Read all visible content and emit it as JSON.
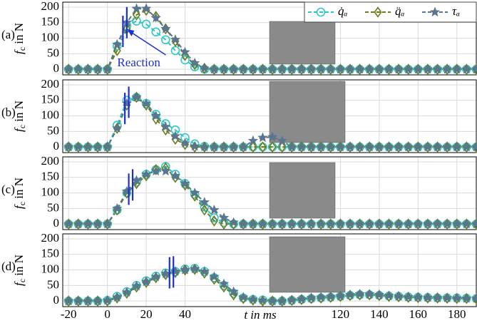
{
  "chart_data": [
    {
      "type": "line",
      "panel_label": "(a)",
      "ylabel": {
        "symbol": "f",
        "sub": "c",
        "text": " in N"
      },
      "annotation": "Reaction",
      "legend": "upper right",
      "grid": true,
      "xlim": [
        -23,
        190
      ],
      "ylim": [
        -18,
        216
      ],
      "yticks": [
        0,
        50,
        100,
        150,
        200
      ],
      "reaction": [
        8,
        10
      ],
      "x": [
        -20,
        -15,
        -10,
        -5,
        0,
        5,
        10,
        15,
        20,
        25,
        30,
        35,
        40,
        45,
        50,
        55,
        60,
        65,
        70,
        75,
        80,
        85,
        90,
        95,
        100,
        105,
        110,
        115,
        120,
        125,
        130,
        135,
        140,
        145,
        150,
        155,
        160,
        165,
        170,
        175,
        180,
        185,
        190
      ],
      "series": [
        {
          "name": "q̇ₐ",
          "color": "#2ec7c7",
          "marker": "circle",
          "values": [
            0,
            0,
            0,
            0,
            0,
            75,
            140,
            155,
            145,
            120,
            95,
            60,
            30,
            8,
            0,
            0,
            0,
            0,
            0,
            0,
            0,
            0,
            0,
            0,
            0,
            0,
            0,
            0,
            0,
            0,
            0,
            0,
            0,
            0,
            0,
            0,
            0,
            0,
            0,
            0,
            0,
            0,
            0
          ]
        },
        {
          "name": "q̈ₐ",
          "color": "#6b7d1a",
          "marker": "diamond",
          "values": [
            0,
            0,
            0,
            0,
            0,
            60,
            130,
            175,
            190,
            170,
            130,
            90,
            45,
            15,
            3,
            0,
            0,
            0,
            0,
            0,
            0,
            0,
            0,
            0,
            0,
            0,
            0,
            0,
            0,
            0,
            0,
            0,
            0,
            0,
            0,
            0,
            0,
            0,
            0,
            0,
            0,
            0,
            0
          ]
        },
        {
          "name": "τₐ",
          "color": "#5a7590",
          "marker": "star",
          "values": [
            0,
            0,
            0,
            0,
            0,
            80,
            150,
            195,
            195,
            165,
            130,
            95,
            55,
            20,
            3,
            0,
            0,
            0,
            0,
            0,
            0,
            0,
            0,
            0,
            0,
            0,
            0,
            0,
            0,
            0,
            0,
            0,
            0,
            0,
            0,
            0,
            0,
            0,
            0,
            0,
            0,
            0,
            0
          ]
        }
      ]
    },
    {
      "type": "line",
      "panel_label": "(b)",
      "ylabel": {
        "symbol": "f",
        "sub": "c",
        "text": " in N"
      },
      "grid": true,
      "xlim": [
        -23,
        190
      ],
      "ylim": [
        -18,
        216
      ],
      "yticks": [
        0,
        50,
        100,
        150,
        200
      ],
      "reaction": [
        9,
        11
      ],
      "x": [
        -20,
        -15,
        -10,
        -5,
        0,
        5,
        10,
        15,
        20,
        25,
        30,
        35,
        40,
        45,
        50,
        55,
        60,
        65,
        70,
        75,
        80,
        85,
        90,
        95,
        100,
        105,
        110,
        115,
        120,
        125,
        130,
        135,
        140,
        145,
        150,
        155,
        160,
        165,
        170,
        175,
        180,
        185,
        190
      ],
      "series": [
        {
          "color": "#2ec7c7",
          "marker": "circle",
          "values": [
            0,
            0,
            0,
            0,
            0,
            70,
            150,
            160,
            140,
            105,
            75,
            55,
            30,
            10,
            2,
            0,
            0,
            0,
            0,
            0,
            0,
            0,
            0,
            0,
            0,
            0,
            0,
            0,
            0,
            0,
            0,
            0,
            0,
            0,
            0,
            0,
            0,
            0,
            0,
            0,
            0,
            0,
            0
          ]
        },
        {
          "color": "#6b7d1a",
          "marker": "diamond",
          "values": [
            0,
            0,
            0,
            0,
            0,
            60,
            135,
            160,
            135,
            90,
            55,
            25,
            8,
            0,
            0,
            0,
            0,
            0,
            0,
            0,
            0,
            0,
            0,
            0,
            0,
            0,
            0,
            0,
            0,
            0,
            0,
            0,
            0,
            0,
            0,
            0,
            0,
            0,
            0,
            0,
            0,
            0,
            0
          ]
        },
        {
          "color": "#5a7590",
          "marker": "star",
          "values": [
            0,
            0,
            0,
            0,
            0,
            60,
            140,
            160,
            140,
            100,
            65,
            35,
            12,
            2,
            0,
            0,
            0,
            0,
            0,
            20,
            30,
            32,
            20,
            0,
            0,
            0,
            0,
            0,
            0,
            0,
            0,
            0,
            0,
            0,
            0,
            0,
            0,
            0,
            0,
            0,
            0,
            0,
            0
          ]
        }
      ]
    },
    {
      "type": "line",
      "panel_label": "(c)",
      "ylabel": {
        "symbol": "f",
        "sub": "c",
        "text": " in N"
      },
      "grid": true,
      "xlim": [
        -23,
        190
      ],
      "ylim": [
        -18,
        216
      ],
      "yticks": [
        0,
        50,
        100,
        150,
        200
      ],
      "reaction": [
        11,
        13
      ],
      "x": [
        -20,
        -15,
        -10,
        -5,
        0,
        5,
        10,
        15,
        20,
        25,
        30,
        35,
        40,
        45,
        50,
        55,
        60,
        65,
        70,
        75,
        80,
        85,
        90,
        95,
        100,
        105,
        110,
        115,
        120,
        125,
        130,
        135,
        140,
        145,
        150,
        155,
        160,
        165,
        170,
        175,
        180,
        185,
        190
      ],
      "series": [
        {
          "color": "#2ec7c7",
          "marker": "circle",
          "values": [
            0,
            0,
            0,
            0,
            0,
            45,
            100,
            135,
            160,
            175,
            185,
            160,
            130,
            95,
            55,
            20,
            5,
            0,
            0,
            0,
            0,
            0,
            0,
            0,
            0,
            0,
            0,
            0,
            0,
            0,
            0,
            0,
            0,
            0,
            0,
            0,
            0,
            0,
            0,
            0,
            0,
            0,
            0
          ]
        },
        {
          "color": "#6b7d1a",
          "marker": "diamond",
          "values": [
            0,
            0,
            0,
            0,
            0,
            45,
            100,
            130,
            155,
            175,
            180,
            150,
            125,
            90,
            45,
            10,
            0,
            0,
            0,
            0,
            0,
            0,
            0,
            0,
            0,
            0,
            0,
            0,
            0,
            0,
            0,
            0,
            0,
            0,
            0,
            0,
            0,
            0,
            0,
            0,
            0,
            0,
            0
          ]
        },
        {
          "color": "#5a7590",
          "marker": "star",
          "values": [
            0,
            0,
            0,
            0,
            0,
            50,
            105,
            140,
            160,
            170,
            170,
            155,
            130,
            100,
            70,
            45,
            20,
            5,
            0,
            0,
            0,
            0,
            0,
            0,
            0,
            0,
            0,
            0,
            0,
            0,
            0,
            0,
            0,
            0,
            0,
            0,
            0,
            0,
            0,
            0,
            0,
            0,
            0
          ]
        }
      ]
    },
    {
      "type": "line",
      "panel_label": "(d)",
      "ylabel": {
        "symbol": "f",
        "sub": "c",
        "text": " in N"
      },
      "grid": true,
      "xlabel": "t in ms",
      "xlim": [
        -23,
        190
      ],
      "ylim": [
        -18,
        216
      ],
      "yticks": [
        0,
        50,
        100,
        150,
        200
      ],
      "xticks": [
        -20,
        0,
        20,
        40,
        120,
        140,
        160,
        180
      ],
      "reaction": [
        32,
        34
      ],
      "x": [
        -20,
        -15,
        -10,
        -5,
        0,
        5,
        10,
        15,
        20,
        25,
        30,
        35,
        40,
        45,
        50,
        55,
        60,
        65,
        70,
        75,
        80,
        85,
        90,
        95,
        100,
        105,
        110,
        115,
        120,
        125,
        130,
        135,
        140,
        145,
        150,
        155,
        160,
        165,
        170,
        175,
        180,
        185,
        190
      ],
      "series": [
        {
          "color": "#2ec7c7",
          "marker": "circle",
          "values": [
            0,
            0,
            0,
            0,
            2,
            15,
            30,
            50,
            65,
            80,
            90,
            95,
            103,
            105,
            95,
            75,
            50,
            25,
            10,
            5,
            3,
            0,
            0,
            2,
            5,
            8,
            10,
            12,
            15,
            18,
            20,
            20,
            18,
            16,
            15,
            13,
            12,
            11,
            10,
            10,
            10,
            9,
            8
          ]
        },
        {
          "color": "#6b7d1a",
          "marker": "diamond",
          "values": [
            0,
            0,
            0,
            0,
            0,
            10,
            25,
            45,
            60,
            75,
            85,
            92,
            100,
            102,
            90,
            70,
            45,
            20,
            8,
            3,
            0,
            0,
            0,
            2,
            5,
            8,
            10,
            12,
            15,
            18,
            20,
            20,
            18,
            15,
            14,
            12,
            11,
            10,
            10,
            9,
            8,
            8,
            7
          ]
        },
        {
          "color": "#5a7590",
          "marker": "star",
          "values": [
            0,
            0,
            0,
            0,
            2,
            12,
            28,
            48,
            62,
            78,
            88,
            95,
            100,
            103,
            95,
            78,
            55,
            30,
            12,
            5,
            2,
            0,
            0,
            3,
            6,
            10,
            12,
            14,
            16,
            20,
            22,
            22,
            20,
            17,
            15,
            13,
            12,
            11,
            10,
            10,
            9,
            8,
            8
          ]
        }
      ]
    }
  ]
}
